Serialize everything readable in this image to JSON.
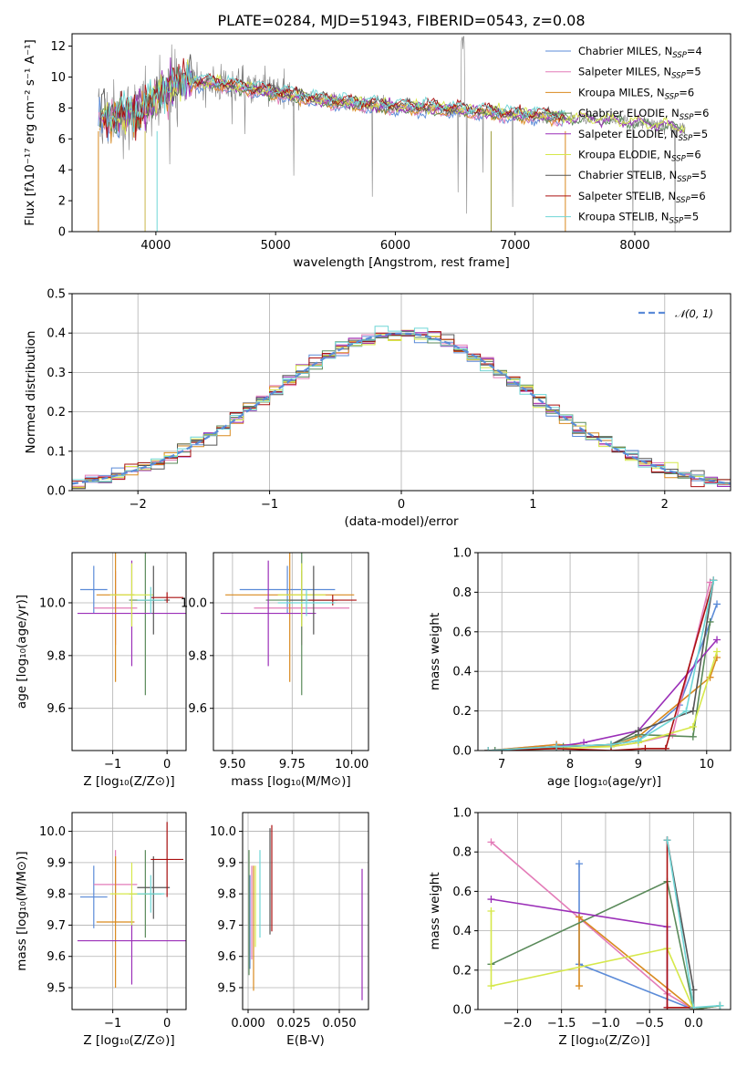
{
  "colors": {
    "Chabrier MILES": "#5b8bd8",
    "Salpeter MILES": "#e37cb8",
    "Kroupa MILES": "#d98a1f",
    "Chabrier ELODIE": "#5a8a5a",
    "Salpeter ELODIE": "#9b2fb8",
    "Kroupa ELODIE": "#d6e84a",
    "Chabrier STELIB": "#555555",
    "Salpeter STELIB": "#aa1111",
    "Kroupa STELIB": "#6fd6d6"
  },
  "chart_data": [
    {
      "id": "spectrum",
      "type": "line",
      "title": "PLATE=0284, MJD=51943, FIBERID=0543, z=0.08",
      "xlabel": "wavelength [Angstrom, rest frame]",
      "ylabel": "Flux [fλ10⁻¹⁷ erg cm⁻² s⁻¹ A⁻¹]",
      "xlim": [
        3300,
        8800
      ],
      "ylim": [
        0,
        12.8
      ],
      "xticks": [
        4000,
        5000,
        6000,
        7000,
        8000
      ],
      "yticks": [
        0,
        2,
        4,
        6,
        8,
        10,
        12
      ],
      "grid": false,
      "legend_position": "right",
      "legend": [
        {
          "name": "Chabrier MILES",
          "nssp": "4"
        },
        {
          "name": "Salpeter MILES",
          "nssp": "5"
        },
        {
          "name": "Kroupa MILES",
          "nssp": "6"
        },
        {
          "name": "Chabrier ELODIE",
          "nssp": "6"
        },
        {
          "name": "Salpeter ELODIE",
          "nssp": "5"
        },
        {
          "name": "Kroupa ELODIE",
          "nssp": "6"
        },
        {
          "name": "Chabrier STELIB",
          "nssp": "5"
        },
        {
          "name": "Salpeter STELIB",
          "nssp": "6"
        },
        {
          "name": "Kroupa STELIB",
          "nssp": "5"
        }
      ],
      "data_range": [
        3520,
        8420
      ],
      "model_continuum": [
        [
          3520,
          7.2
        ],
        [
          3700,
          7.5
        ],
        [
          3900,
          8.0
        ],
        [
          4000,
          8.8
        ],
        [
          4200,
          9.8
        ],
        [
          4500,
          9.6
        ],
        [
          5000,
          9.0
        ],
        [
          5500,
          8.4
        ],
        [
          6000,
          8.1
        ],
        [
          6500,
          7.9
        ],
        [
          7000,
          7.6
        ],
        [
          7400,
          7.4
        ],
        [
          8000,
          7.1
        ],
        [
          8420,
          6.7
        ]
      ]
    },
    {
      "id": "residuals",
      "type": "step",
      "xlabel": "(data-model)/error",
      "ylabel": "Normed distribution",
      "xlim": [
        -2.5,
        2.5
      ],
      "ylim": [
        0,
        0.5
      ],
      "xticks": [
        -2,
        -1,
        0,
        1,
        2
      ],
      "yticks": [
        0.0,
        0.1,
        0.2,
        0.3,
        0.4,
        0.5
      ],
      "grid": true,
      "legend_position": "top-right",
      "reference_label": "𝒩(0, 1)",
      "bin_width": 0.1
    },
    {
      "id": "z_age",
      "type": "errorbar",
      "xlabel": "Z [log₁₀(Z/Z⊙)]",
      "ylabel": "age  [log₁₀(age/yr)]",
      "xlim": [
        -1.75,
        0.35
      ],
      "ylim": [
        9.44,
        10.19
      ],
      "xticks": [
        -1,
        0
      ],
      "yticks": [
        9.6,
        9.8,
        10.0
      ],
      "grid": true,
      "points": [
        {
          "series": "Chabrier MILES",
          "x": -1.35,
          "xerr": 0.25,
          "y": 10.05,
          "yerr": 0.09
        },
        {
          "series": "Salpeter MILES",
          "x": -0.95,
          "xerr": 0.4,
          "y": 9.98,
          "yerr": 0.14
        },
        {
          "series": "Kroupa MILES",
          "x": -0.95,
          "xerr": 0.35,
          "y": 10.03,
          "yerr": 0.33
        },
        {
          "series": "Chabrier ELODIE",
          "x": -0.4,
          "xerr": 0.3,
          "y": 10.01,
          "yerr": 0.36
        },
        {
          "series": "Salpeter ELODIE",
          "x": -0.65,
          "xerr": 1.0,
          "y": 9.96,
          "yerr": 0.2
        },
        {
          "series": "Kroupa ELODIE",
          "x": -0.65,
          "xerr": 0.4,
          "y": 10.03,
          "yerr": 0.12
        },
        {
          "series": "Chabrier STELIB",
          "x": -0.25,
          "xerr": 0.3,
          "y": 10.01,
          "yerr": 0.13
        },
        {
          "series": "Salpeter STELIB",
          "x": 0.0,
          "xerr": 0.3,
          "y": 10.02,
          "yerr": 0.02
        },
        {
          "series": "Kroupa STELIB",
          "x": -0.3,
          "xerr": 0.25,
          "y": 10.01,
          "yerr": 0.05
        }
      ]
    },
    {
      "id": "mass_age",
      "type": "errorbar",
      "xlabel": "mass [log₁₀(M/M⊙)]",
      "xlim": [
        9.42,
        10.07
      ],
      "ylim": [
        9.44,
        10.19
      ],
      "xticks": [
        9.5,
        9.75,
        10.0
      ],
      "xticklabels": [
        "9.50",
        "9.75",
        "10.00"
      ],
      "yticks": [
        9.6,
        9.8,
        10.0
      ],
      "grid": true,
      "points": [
        {
          "series": "Chabrier MILES",
          "x": 9.73,
          "xerr": 0.2,
          "y": 10.05,
          "yerr": 0.09
        },
        {
          "series": "Salpeter MILES",
          "x": 9.79,
          "xerr": 0.2,
          "y": 9.98,
          "yerr": 0.14
        },
        {
          "series": "Kroupa MILES",
          "x": 9.74,
          "xerr": 0.27,
          "y": 10.03,
          "yerr": 0.33
        },
        {
          "series": "Chabrier ELODIE",
          "x": 9.79,
          "xerr": 0.15,
          "y": 10.01,
          "yerr": 0.36
        },
        {
          "series": "Salpeter ELODIE",
          "x": 9.65,
          "xerr": 0.2,
          "y": 9.96,
          "yerr": 0.2
        },
        {
          "series": "Kroupa ELODIE",
          "x": 9.79,
          "xerr": 0.1,
          "y": 10.03,
          "yerr": 0.12
        },
        {
          "series": "Chabrier STELIB",
          "x": 9.84,
          "xerr": 0.1,
          "y": 10.01,
          "yerr": 0.13
        },
        {
          "series": "Salpeter STELIB",
          "x": 9.92,
          "xerr": 0.1,
          "y": 10.01,
          "yerr": 0.02
        },
        {
          "series": "Kroupa STELIB",
          "x": 9.81,
          "xerr": 0.12,
          "y": 10.0,
          "yerr": 0.05
        }
      ]
    },
    {
      "id": "age_weight",
      "type": "line",
      "xlabel": "age  [log₁₀(age/yr)]",
      "ylabel": "mass weight",
      "xlim": [
        6.65,
        10.35
      ],
      "ylim": [
        0,
        1.0
      ],
      "xticks": [
        7,
        8,
        9,
        10
      ],
      "yticks": [
        0.0,
        0.2,
        0.4,
        0.6,
        0.8,
        1.0
      ],
      "grid": true,
      "series": [
        {
          "name": "Chabrier MILES",
          "x": [
            6.8,
            7.8,
            8.6,
            9.0,
            9.6,
            10.15
          ],
          "y": [
            0.0,
            0.02,
            0.03,
            0.05,
            0.23,
            0.74
          ]
        },
        {
          "name": "Salpeter MILES",
          "x": [
            6.8,
            7.8,
            8.6,
            9.0,
            9.5,
            10.05
          ],
          "y": [
            0.0,
            0.03,
            0.02,
            0.04,
            0.08,
            0.85
          ]
        },
        {
          "name": "Kroupa MILES",
          "x": [
            6.8,
            7.8,
            8.6,
            9.0,
            10.05,
            10.15
          ],
          "y": [
            0.0,
            0.03,
            0.02,
            0.07,
            0.37,
            0.47
          ]
        },
        {
          "name": "Chabrier ELODIE",
          "x": [
            6.9,
            7.9,
            8.6,
            9.0,
            9.8,
            10.05
          ],
          "y": [
            0.0,
            0.02,
            0.03,
            0.08,
            0.07,
            0.65
          ]
        },
        {
          "name": "Salpeter ELODIE",
          "x": [
            6.8,
            7.8,
            8.2,
            9.0,
            10.15
          ],
          "y": [
            0.0,
            0.02,
            0.04,
            0.1,
            0.56
          ]
        },
        {
          "name": "Kroupa ELODIE",
          "x": [
            6.8,
            7.8,
            8.6,
            9.0,
            9.8,
            10.15
          ],
          "y": [
            0.0,
            0.01,
            0.02,
            0.04,
            0.12,
            0.5
          ]
        },
        {
          "name": "Chabrier STELIB",
          "x": [
            6.8,
            7.8,
            8.6,
            9.0,
            9.8,
            10.1
          ],
          "y": [
            0.0,
            0.02,
            0.03,
            0.1,
            0.2,
            0.86
          ]
        },
        {
          "name": "Salpeter STELIB",
          "x": [
            6.8,
            7.8,
            8.6,
            9.1,
            9.4,
            10.1
          ],
          "y": [
            0.0,
            0.01,
            0.0,
            0.01,
            0.01,
            0.86
          ]
        },
        {
          "name": "Kroupa STELIB",
          "x": [
            6.8,
            7.8,
            8.6,
            9.0,
            9.7,
            10.1
          ],
          "y": [
            0.0,
            0.02,
            0.03,
            0.05,
            0.2,
            0.86
          ]
        }
      ]
    },
    {
      "id": "z_mass",
      "type": "errorbar",
      "xlabel": "Z [log₁₀(Z/Z⊙)]",
      "ylabel": "mass [log₁₀(M/M⊙)]",
      "xlim": [
        -1.75,
        0.35
      ],
      "ylim": [
        9.43,
        10.06
      ],
      "xticks": [
        -1,
        0
      ],
      "yticks": [
        9.5,
        9.6,
        9.7,
        9.8,
        9.9,
        10.0
      ],
      "grid": true,
      "points": [
        {
          "series": "Chabrier MILES",
          "x": -1.35,
          "xerr": 0.25,
          "y": 9.79,
          "yerr": 0.1
        },
        {
          "series": "Salpeter MILES",
          "x": -0.95,
          "xerr": 0.4,
          "y": 9.83,
          "yerr": 0.11
        },
        {
          "series": "Kroupa MILES",
          "x": -0.95,
          "xerr": 0.35,
          "y": 9.71,
          "yerr": 0.21
        },
        {
          "series": "Chabrier ELODIE",
          "x": -0.4,
          "xerr": 0.3,
          "y": 9.8,
          "yerr": 0.14
        },
        {
          "series": "Salpeter ELODIE",
          "x": -0.65,
          "xerr": 1.0,
          "y": 9.65,
          "yerr": 0.14
        },
        {
          "series": "Kroupa ELODIE",
          "x": -0.65,
          "xerr": 0.4,
          "y": 9.8,
          "yerr": 0.1
        },
        {
          "series": "Chabrier STELIB",
          "x": -0.25,
          "xerr": 0.3,
          "y": 9.82,
          "yerr": 0.1
        },
        {
          "series": "Salpeter STELIB",
          "x": 0.0,
          "xerr": 0.3,
          "y": 9.91,
          "yerr": 0.12
        },
        {
          "series": "Kroupa STELIB",
          "x": -0.3,
          "xerr": 0.25,
          "y": 9.8,
          "yerr": 0.06
        }
      ]
    },
    {
      "id": "ebv_mass",
      "type": "errorbar",
      "xlabel": "E(B-V)",
      "xlim": [
        -0.003,
        0.066
      ],
      "ylim": [
        9.43,
        10.06
      ],
      "xticks": [
        0.0,
        0.025,
        0.05
      ],
      "xticklabels": [
        "0.000",
        "0.025",
        "0.050"
      ],
      "yticks": [
        9.5,
        9.6,
        9.7,
        9.8,
        9.9,
        10.0
      ],
      "grid": true,
      "points": [
        {
          "series": "Chabrier MILES",
          "x": 0.001,
          "xerr": 0,
          "y": 9.71,
          "yerr": 0.15
        },
        {
          "series": "Salpeter MILES",
          "x": 0.002,
          "xerr": 0,
          "y": 9.74,
          "yerr": 0.15
        },
        {
          "series": "Kroupa MILES",
          "x": 0.003,
          "xerr": 0,
          "y": 9.69,
          "yerr": 0.2
        },
        {
          "series": "Chabrier ELODIE",
          "x": 0.0005,
          "xerr": 0,
          "y": 9.74,
          "yerr": 0.2
        },
        {
          "series": "Salpeter ELODIE",
          "x": 0.0625,
          "xerr": 0,
          "y": 9.67,
          "yerr": 0.21
        },
        {
          "series": "Kroupa ELODIE",
          "x": 0.004,
          "xerr": 0,
          "y": 9.76,
          "yerr": 0.13
        },
        {
          "series": "Chabrier STELIB",
          "x": 0.012,
          "xerr": 0,
          "y": 9.84,
          "yerr": 0.17
        },
        {
          "series": "Salpeter STELIB",
          "x": 0.013,
          "xerr": 0,
          "y": 9.85,
          "yerr": 0.17
        },
        {
          "series": "Kroupa STELIB",
          "x": 0.0065,
          "xerr": 0,
          "y": 9.8,
          "yerr": 0.14
        }
      ]
    },
    {
      "id": "z_weight",
      "type": "line",
      "xlabel": "Z [log₁₀(Z/Z⊙)]",
      "ylabel": "mass weight",
      "xlim": [
        -2.45,
        0.42
      ],
      "ylim": [
        0,
        1.0
      ],
      "xticks": [
        -2.0,
        -1.5,
        -1.0,
        -0.5,
        0.0
      ],
      "xticklabels": [
        "−2.0",
        "−1.5",
        "−1.0",
        "−0.5",
        "0.0"
      ],
      "yticks": [
        0.0,
        0.2,
        0.4,
        0.6,
        0.8,
        1.0
      ],
      "grid": true,
      "series": [
        {
          "name": "Chabrier MILES",
          "x": [
            -1.3,
            -1.3,
            0.0,
            0.3
          ],
          "y": [
            0.74,
            0.23,
            0.0,
            0.02
          ]
        },
        {
          "name": "Salpeter MILES",
          "x": [
            -2.3,
            -0.3,
            0.0,
            0.3
          ],
          "y": [
            0.85,
            0.08,
            0.0,
            0.02
          ]
        },
        {
          "name": "Kroupa MILES",
          "x": [
            -1.3,
            -1.3,
            0.0,
            0.3
          ],
          "y": [
            0.12,
            0.47,
            0.0,
            0.02
          ]
        },
        {
          "name": "Chabrier ELODIE",
          "x": [
            -2.3,
            -0.3,
            0.0,
            0.3
          ],
          "y": [
            0.23,
            0.65,
            0.0,
            0.02
          ]
        },
        {
          "name": "Salpeter ELODIE",
          "x": [
            -2.3,
            -0.3,
            -0.3
          ],
          "y": [
            0.56,
            0.42,
            0.01
          ]
        },
        {
          "name": "Kroupa ELODIE",
          "x": [
            -2.3,
            -2.3,
            -0.3,
            0.0
          ],
          "y": [
            0.5,
            0.12,
            0.31,
            0.0
          ]
        },
        {
          "name": "Chabrier STELIB",
          "x": [
            -0.3,
            0.0,
            0.0
          ],
          "y": [
            0.86,
            0.1,
            0.0
          ]
        },
        {
          "name": "Salpeter STELIB",
          "x": [
            -0.3,
            -0.3,
            0.0
          ],
          "y": [
            0.86,
            0.01,
            0.01
          ]
        },
        {
          "name": "Kroupa STELIB",
          "x": [
            -0.3,
            0.0,
            0.3
          ],
          "y": [
            0.86,
            0.01,
            0.02
          ]
        }
      ]
    }
  ]
}
